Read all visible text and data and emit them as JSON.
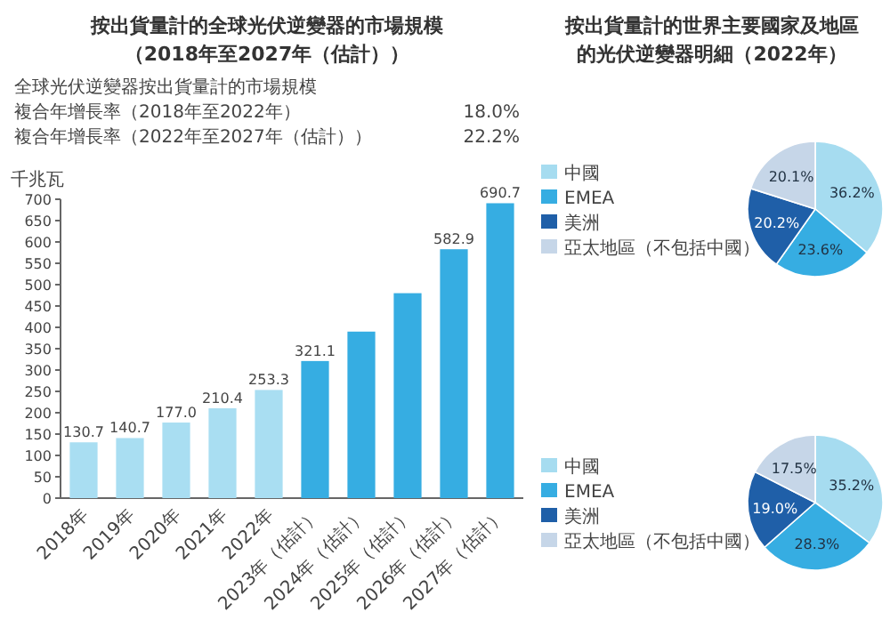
{
  "chart_data": [
    {
      "type": "bar",
      "title": "按出貨量計的全球光伏逆變器的市場規模",
      "subtitle": "（2018年至2027年（估計））",
      "ylabel": "千兆瓦",
      "annotations": [
        "全球光伏逆變器按出貨量計的市場規模",
        "複合年增長率（2018年至2022年）",
        "18.0%",
        "複合年增長率（2022年至2027年（估計））",
        "22.2%"
      ],
      "categories": [
        "2018年",
        "2019年",
        "2020年",
        "2021年",
        "2022年",
        "2023年（估計）",
        "2024年（估計）",
        "2025年（估計）",
        "2026年（估計）",
        "2027年（估計）"
      ],
      "values": [
        130.7,
        140.7,
        177.0,
        210.4,
        253.3,
        321.1,
        390,
        480,
        582.9,
        690.7
      ],
      "colors": [
        "#a9def2",
        "#a9def2",
        "#a9def2",
        "#a9def2",
        "#a9def2",
        "#36ade2",
        "#36ade2",
        "#36ade2",
        "#36ade2",
        "#36ade2"
      ],
      "value_labels": [
        "130.7",
        "140.7",
        "177.0",
        "210.4",
        "253.3",
        "321.1",
        null,
        null,
        "582.9",
        "690.7"
      ],
      "ylim": [
        0,
        700
      ],
      "yticks": [
        0,
        50,
        100,
        150,
        200,
        250,
        300,
        350,
        400,
        450,
        500,
        550,
        600,
        650,
        700
      ]
    },
    {
      "type": "pie",
      "title": "按出貨量計的世界主要國家及地區的光伏逆變器明細（2022年）",
      "categories": [
        "中國",
        "EMEA",
        "美洲",
        "亞太地區（不包括中國）"
      ],
      "values": [
        36.2,
        23.6,
        20.2,
        20.1
      ],
      "colors": [
        "#a6dcf0",
        "#36ade2",
        "#1f5fa8",
        "#c6d6e8"
      ],
      "value_labels": [
        "36.2%",
        "23.6%",
        "20.2%",
        "20.1%"
      ],
      "legend": "left"
    },
    {
      "type": "pie",
      "categories": [
        "中國",
        "EMEA",
        "美洲",
        "亞太地區（不包括中國）"
      ],
      "values": [
        35.2,
        28.3,
        19.0,
        17.5
      ],
      "colors": [
        "#a6dcf0",
        "#36ade2",
        "#1f5fa8",
        "#c6d6e8"
      ],
      "value_labels": [
        "35.2%",
        "28.3%",
        "19.0%",
        "17.5%"
      ],
      "legend": "left"
    }
  ]
}
